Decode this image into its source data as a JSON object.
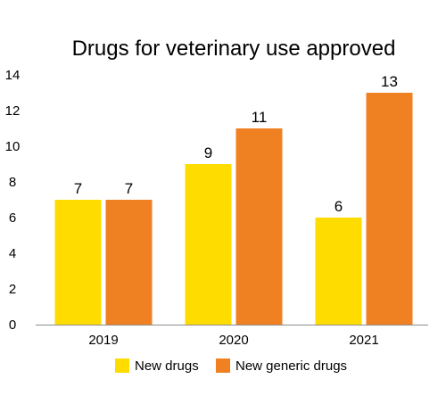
{
  "chart_data": {
    "type": "bar",
    "title": "Drugs for veterinary use approved",
    "categories": [
      "2019",
      "2020",
      "2021"
    ],
    "series": [
      {
        "name": "New drugs",
        "values": [
          7,
          9,
          6
        ],
        "color": "#FFDC00"
      },
      {
        "name": "New generic drugs",
        "values": [
          7,
          11,
          13
        ],
        "color": "#F08122"
      }
    ],
    "yticks": [
      0,
      2,
      4,
      6,
      8,
      10,
      12,
      14
    ],
    "ylim": [
      0,
      14
    ],
    "grid": false,
    "legend": "bottom-center",
    "axis_color": "#8c8c8c"
  }
}
